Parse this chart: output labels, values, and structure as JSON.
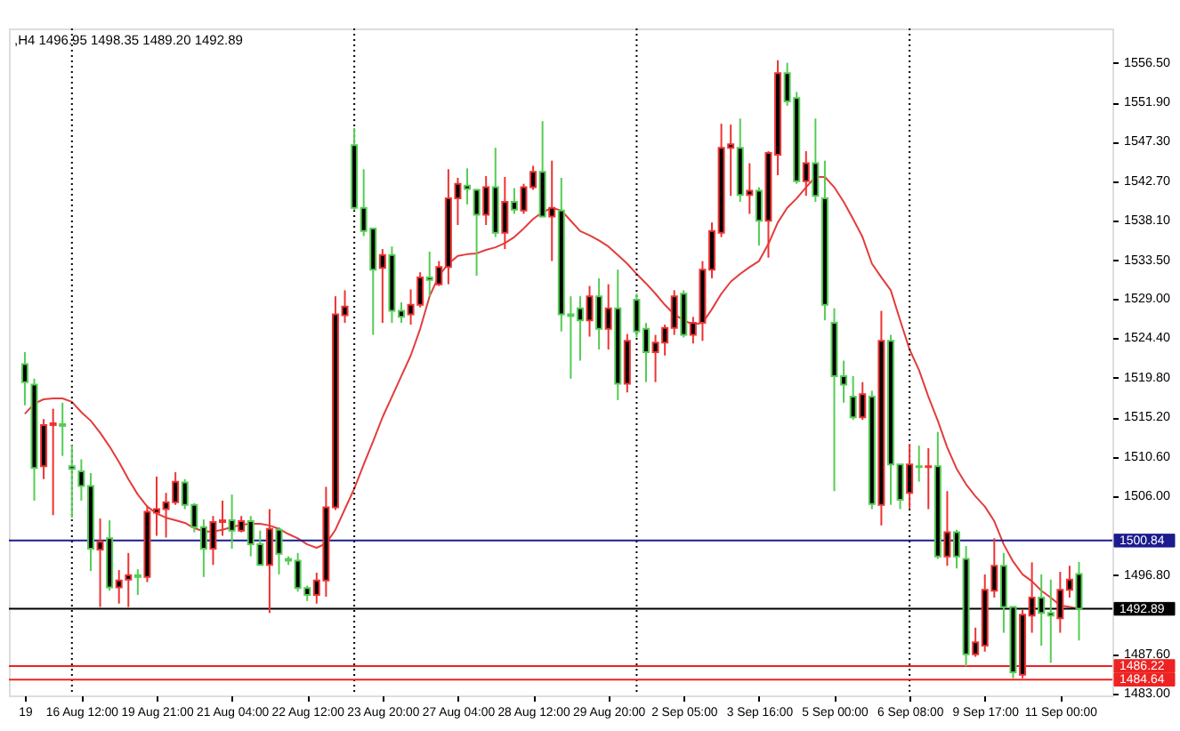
{
  "chart_data": {
    "type": "candlestick",
    "title": ",H4 1496.95 1498.35 1489.20 1492.89",
    "categories": [
      "19",
      null,
      null,
      null,
      null,
      null,
      "16 Aug 12:00",
      null,
      null,
      null,
      null,
      null,
      null,
      null,
      "19 Aug 21:00",
      null,
      null,
      null,
      null,
      null,
      null,
      null,
      "21 Aug 04:00",
      null,
      null,
      null,
      null,
      null,
      null,
      null,
      "22 Aug 12:00",
      null,
      null,
      null,
      null,
      null,
      null,
      null,
      "23 Aug 20:00",
      null,
      null,
      null,
      null,
      null,
      null,
      null,
      "27 Aug 04:00",
      null,
      null,
      null,
      null,
      null,
      null,
      null,
      "28 Aug 12:00",
      null,
      null,
      null,
      null,
      null,
      null,
      null,
      "29 Aug 20:00",
      null,
      null,
      null,
      null,
      null,
      null,
      null,
      "2 Sep 05:00",
      null,
      null,
      null,
      null,
      null,
      null,
      null,
      "3 Sep 16:00",
      null,
      null,
      null,
      null,
      null,
      null,
      null,
      "5 Sep 00:00",
      null,
      null,
      null,
      null,
      null,
      null,
      null,
      "6 Sep 08:00",
      null,
      null,
      null,
      null,
      null,
      null,
      null,
      "9 Sep 17:00",
      null,
      null,
      null,
      null,
      null,
      null,
      null,
      "11 Sep 00:00",
      null,
      null
    ],
    "ohlc": [
      [
        1521.4,
        1522.8,
        1516.6,
        1519.3
      ],
      [
        1519.0,
        1519.7,
        1505.5,
        1509.3
      ],
      [
        1509.5,
        1515.0,
        1508.0,
        1514.3
      ],
      [
        1514.3,
        1516.2,
        1503.8,
        1514.5
      ],
      [
        1514.4,
        1516.9,
        1510.7,
        1514.2
      ],
      [
        1509.5,
        1512.0,
        1503.5,
        1509.2
      ],
      [
        1508.9,
        1510.3,
        1505.5,
        1507.2
      ],
      [
        1507.2,
        1508.7,
        1497.3,
        1499.9
      ],
      [
        1499.8,
        1503.4,
        1493.1,
        1500.7
      ],
      [
        1501.1,
        1503.2,
        1495.0,
        1495.4
      ],
      [
        1495.4,
        1497.4,
        1493.5,
        1496.2
      ],
      [
        1496.3,
        1499.4,
        1493.1,
        1496.8
      ],
      [
        1496.8,
        1497.5,
        1494.5,
        1496.6
      ],
      [
        1496.6,
        1504.9,
        1496.0,
        1504.2
      ],
      [
        1504.1,
        1508.3,
        1501.4,
        1504.5
      ],
      [
        1504.5,
        1506.4,
        1501.2,
        1505.3
      ],
      [
        1505.3,
        1508.8,
        1505.0,
        1507.7
      ],
      [
        1507.6,
        1508.0,
        1504.5,
        1505.0
      ],
      [
        1505.0,
        1505.2,
        1501.8,
        1502.4
      ],
      [
        1502.4,
        1503.3,
        1496.6,
        1499.9
      ],
      [
        1499.9,
        1503.7,
        1498.0,
        1503.0
      ],
      [
        1503.0,
        1505.5,
        1501.4,
        1503.2
      ],
      [
        1503.2,
        1506.2,
        1499.9,
        1502.0
      ],
      [
        1502.0,
        1503.7,
        1501.8,
        1503.1
      ],
      [
        1503.1,
        1503.7,
        1499.0,
        1500.4
      ],
      [
        1500.4,
        1502.0,
        1497.9,
        1498.0
      ],
      [
        1498.0,
        1504.5,
        1492.4,
        1502.2
      ],
      [
        1502.1,
        1502.4,
        1496.9,
        1499.3
      ],
      [
        1498.7,
        1499.0,
        1498.0,
        1498.5
      ],
      [
        1498.5,
        1499.4,
        1494.9,
        1495.3
      ],
      [
        1495.3,
        1495.6,
        1493.8,
        1494.5
      ],
      [
        1494.5,
        1497.1,
        1493.5,
        1496.2
      ],
      [
        1496.2,
        1507.1,
        1494.3,
        1504.7
      ],
      [
        1504.7,
        1529.3,
        1504.4,
        1527.2
      ],
      [
        1527.1,
        1530.0,
        1526.2,
        1528.1
      ],
      [
        1546.9,
        1548.9,
        1539.3,
        1539.6
      ],
      [
        1539.6,
        1544.1,
        1536.3,
        1536.9
      ],
      [
        1537.2,
        1537.3,
        1524.8,
        1532.4
      ],
      [
        1532.6,
        1534.8,
        1526.2,
        1534.1
      ],
      [
        1534.1,
        1535.1,
        1526.2,
        1527.6
      ],
      [
        1527.6,
        1528.6,
        1526.2,
        1526.9
      ],
      [
        1527.2,
        1530.1,
        1526.0,
        1528.3
      ],
      [
        1528.3,
        1532.1,
        1528.0,
        1531.5
      ],
      [
        1531.5,
        1534.5,
        1529.3,
        1531.2
      ],
      [
        1530.7,
        1533.4,
        1530.5,
        1532.7
      ],
      [
        1532.7,
        1544.1,
        1530.7,
        1540.7
      ],
      [
        1540.7,
        1543.1,
        1537.6,
        1542.4
      ],
      [
        1542.2,
        1544.2,
        1540.0,
        1541.8
      ],
      [
        1541.7,
        1541.8,
        1531.7,
        1538.8
      ],
      [
        1538.8,
        1543.3,
        1537.6,
        1542.0
      ],
      [
        1542.0,
        1546.6,
        1536.2,
        1536.7
      ],
      [
        1536.7,
        1543.2,
        1534.8,
        1540.3
      ],
      [
        1540.3,
        1541.9,
        1538.9,
        1539.4
      ],
      [
        1539.3,
        1542.4,
        1538.9,
        1542.0
      ],
      [
        1542.0,
        1544.5,
        1541.7,
        1543.8
      ],
      [
        1543.8,
        1549.7,
        1538.5,
        1538.6
      ],
      [
        1538.6,
        1545.1,
        1533.4,
        1539.6
      ],
      [
        1539.3,
        1543.1,
        1525.2,
        1527.2
      ],
      [
        1527.2,
        1529.3,
        1519.7,
        1527.0
      ],
      [
        1527.9,
        1529.3,
        1521.8,
        1526.5
      ],
      [
        1526.5,
        1530.5,
        1524.6,
        1529.3
      ],
      [
        1529.3,
        1531.4,
        1523.1,
        1525.5
      ],
      [
        1525.5,
        1530.7,
        1523.1,
        1527.9
      ],
      [
        1527.9,
        1532.4,
        1517.2,
        1519.1
      ],
      [
        1519.1,
        1524.9,
        1518.1,
        1524.1
      ],
      [
        1528.9,
        1529.6,
        1524.5,
        1525.2
      ],
      [
        1525.5,
        1526.2,
        1519.3,
        1522.8
      ],
      [
        1522.8,
        1524.8,
        1519.3,
        1523.9
      ],
      [
        1523.9,
        1526.0,
        1522.4,
        1525.6
      ],
      [
        1525.6,
        1530.0,
        1524.8,
        1529.3
      ],
      [
        1529.6,
        1530.0,
        1524.5,
        1524.8
      ],
      [
        1524.8,
        1526.9,
        1523.8,
        1526.2
      ],
      [
        1526.2,
        1533.4,
        1524.1,
        1532.4
      ],
      [
        1532.4,
        1537.9,
        1531.4,
        1536.9
      ],
      [
        1536.7,
        1549.4,
        1536.2,
        1546.6
      ],
      [
        1546.6,
        1549.3,
        1541.0,
        1547.0
      ],
      [
        1546.6,
        1550.0,
        1540.3,
        1541.1
      ],
      [
        1541.1,
        1544.8,
        1538.9,
        1541.6
      ],
      [
        1541.6,
        1542.0,
        1535.2,
        1538.1
      ],
      [
        1538.1,
        1546.2,
        1533.8,
        1546.0
      ],
      [
        1545.8,
        1556.8,
        1543.4,
        1555.3
      ],
      [
        1555.3,
        1556.5,
        1551.5,
        1552.0
      ],
      [
        1552.4,
        1553.1,
        1542.4,
        1542.7
      ],
      [
        1542.7,
        1546.2,
        1541.0,
        1544.8
      ],
      [
        1544.8,
        1550.0,
        1540.3,
        1541.0
      ],
      [
        1540.7,
        1545.1,
        1526.5,
        1528.3
      ],
      [
        1526.2,
        1527.9,
        1506.6,
        1520.0
      ],
      [
        1520.0,
        1521.8,
        1516.9,
        1519.0
      ],
      [
        1517.6,
        1520.0,
        1514.9,
        1515.2
      ],
      [
        1515.2,
        1519.3,
        1514.9,
        1517.9
      ],
      [
        1517.6,
        1518.3,
        1504.5,
        1505.1
      ],
      [
        1505.0,
        1527.6,
        1502.6,
        1524.1
      ],
      [
        1524.1,
        1524.8,
        1505.0,
        1509.7
      ],
      [
        1509.7,
        1509.7,
        1504.5,
        1505.6
      ],
      [
        1506.4,
        1512.1,
        1504.5,
        1509.7
      ],
      [
        1509.5,
        1511.9,
        1507.7,
        1509.4
      ],
      [
        1509.4,
        1511.6,
        1504.5,
        1509.5
      ],
      [
        1509.5,
        1513.5,
        1498.7,
        1499.0
      ],
      [
        1499.0,
        1506.6,
        1497.9,
        1501.8
      ],
      [
        1501.8,
        1502.1,
        1497.6,
        1499.0
      ],
      [
        1498.7,
        1500.2,
        1486.2,
        1487.6
      ],
      [
        1487.6,
        1490.7,
        1487.3,
        1489.0
      ],
      [
        1488.6,
        1496.9,
        1487.9,
        1495.1
      ],
      [
        1495.0,
        1501.1,
        1494.2,
        1497.9
      ],
      [
        1497.9,
        1499.4,
        1490.1,
        1493.1
      ],
      [
        1493.1,
        1493.1,
        1484.8,
        1485.5
      ],
      [
        1485.2,
        1492.8,
        1484.8,
        1492.2
      ],
      [
        1492.1,
        1498.3,
        1490.1,
        1494.2
      ],
      [
        1494.2,
        1496.9,
        1488.6,
        1492.4
      ],
      [
        1492.4,
        1496.3,
        1486.6,
        1492.1
      ],
      [
        1491.8,
        1497.2,
        1490.1,
        1495.1
      ],
      [
        1495.1,
        1497.9,
        1494.2,
        1496.3
      ],
      [
        1496.95,
        1498.35,
        1489.2,
        1492.89
      ]
    ],
    "colors": [
      "#55cc55",
      "#55cc55",
      "#ee3333",
      "#ee3333",
      "#55cc55",
      "#55cc55",
      "#55cc55",
      "#55cc55",
      "#ee3333",
      "#55cc55",
      "#ee3333",
      "#ee3333",
      "#55cc55",
      "#ee3333",
      "#ee3333",
      "#ee3333",
      "#ee3333",
      "#55cc55",
      "#55cc55",
      "#55cc55",
      "#ee3333",
      "#ee3333",
      "#55cc55",
      "#ee3333",
      "#55cc55",
      "#55cc55",
      "#ee3333",
      "#55cc55",
      "#55cc55",
      "#55cc55",
      "#55cc55",
      "#ee3333",
      "#ee3333",
      "#ee3333",
      "#ee3333",
      "#55cc55",
      "#55cc55",
      "#55cc55",
      "#ee3333",
      "#55cc55",
      "#55cc55",
      "#ee3333",
      "#ee3333",
      "#55cc55",
      "#ee3333",
      "#ee3333",
      "#ee3333",
      "#55cc55",
      "#55cc55",
      "#ee3333",
      "#55cc55",
      "#ee3333",
      "#55cc55",
      "#ee3333",
      "#ee3333",
      "#55cc55",
      "#ee3333",
      "#55cc55",
      "#55cc55",
      "#55cc55",
      "#ee3333",
      "#55cc55",
      "#ee3333",
      "#55cc55",
      "#ee3333",
      "#55cc55",
      "#55cc55",
      "#ee3333",
      "#ee3333",
      "#ee3333",
      "#55cc55",
      "#ee3333",
      "#ee3333",
      "#ee3333",
      "#ee3333",
      "#ee3333",
      "#55cc55",
      "#ee3333",
      "#55cc55",
      "#ee3333",
      "#ee3333",
      "#55cc55",
      "#55cc55",
      "#ee3333",
      "#55cc55",
      "#55cc55",
      "#55cc55",
      "#55cc55",
      "#55cc55",
      "#ee3333",
      "#55cc55",
      "#ee3333",
      "#55cc55",
      "#55cc55",
      "#ee3333",
      "#55cc55",
      "#ee3333",
      "#55cc55",
      "#ee3333",
      "#55cc55",
      "#55cc55",
      "#ee3333",
      "#ee3333",
      "#ee3333",
      "#55cc55",
      "#55cc55",
      "#ee3333",
      "#ee3333",
      "#55cc55",
      "#55cc55",
      "#ee3333",
      "#ee3333",
      "#55cc55"
    ],
    "series": [
      {
        "type": "line",
        "color": "#e43c3c",
        "values": [
          1515.6,
          1516.8,
          1517.3,
          1517.4,
          1517.4,
          1517.0,
          1515.8,
          1514.8,
          1513.4,
          1511.8,
          1510.0,
          1508.0,
          1506.2,
          1504.8,
          1504.0,
          1503.5,
          1503.2,
          1502.9,
          1502.3,
          1501.9,
          1501.9,
          1502.1,
          1502.4,
          1502.7,
          1502.8,
          1502.8,
          1502.6,
          1502.2,
          1501.6,
          1501.1,
          1500.4,
          1500.0,
          1500.5,
          1502.1,
          1504.5,
          1506.9,
          1509.7,
          1512.4,
          1515.2,
          1517.6,
          1520.0,
          1522.4,
          1525.5,
          1529.3,
          1531.7,
          1533.1,
          1534.0,
          1534.2,
          1534.3,
          1534.7,
          1535.0,
          1535.5,
          1536.2,
          1537.2,
          1538.3,
          1539.1,
          1539.6,
          1539.3,
          1538.1,
          1536.9,
          1536.4,
          1535.8,
          1535.1,
          1534.1,
          1533.1,
          1531.9,
          1530.8,
          1529.6,
          1528.3,
          1527.2,
          1526.5,
          1526.0,
          1526.2,
          1527.8,
          1529.6,
          1531.0,
          1531.9,
          1532.7,
          1533.4,
          1535.4,
          1537.9,
          1539.6,
          1540.7,
          1542.0,
          1543.2,
          1543.2,
          1542.0,
          1540.3,
          1538.3,
          1536.2,
          1533.1,
          1531.5,
          1530.0,
          1526.5,
          1523.1,
          1520.7,
          1517.6,
          1514.8,
          1511.7,
          1509.2,
          1507.4,
          1506.0,
          1504.8,
          1503.1,
          1500.4,
          1498.4,
          1496.9,
          1496.1,
          1495.0,
          1494.2,
          1493.3,
          1493.1,
          1492.9
        ]
      }
    ],
    "ylim": [
      1482.8,
      1560.5
    ],
    "yticks": [
      {
        "value": 1556.5,
        "label": "1556.50"
      },
      {
        "value": 1551.9,
        "label": "1551.90"
      },
      {
        "value": 1547.3,
        "label": "1547.30"
      },
      {
        "value": 1542.7,
        "label": "1542.70"
      },
      {
        "value": 1538.1,
        "label": "1538.10"
      },
      {
        "value": 1533.5,
        "label": "1533.50"
      },
      {
        "value": 1529.0,
        "label": "1529.00"
      },
      {
        "value": 1524.4,
        "label": "1524.40"
      },
      {
        "value": 1519.8,
        "label": "1519.80"
      },
      {
        "value": 1515.2,
        "label": "1515.20"
      },
      {
        "value": 1510.6,
        "label": "1510.60"
      },
      {
        "value": 1506.0,
        "label": "1506.00"
      },
      {
        "value": 1496.8,
        "label": "1496.80"
      },
      {
        "value": 1487.6,
        "label": "1487.60"
      },
      {
        "value": 1483.0,
        "label": "1483.00"
      }
    ],
    "ref_lines": [
      {
        "axis": "y",
        "value": 1500.84,
        "label": "1500.84",
        "color": "#1c1c8f",
        "line_style": "solid"
      },
      {
        "axis": "y",
        "value": 1492.89,
        "label": "1492.89",
        "color": "#000000",
        "line_style": "solid"
      },
      {
        "axis": "y",
        "value": 1486.22,
        "label": "1486.22",
        "color": "#ee2222",
        "line_style": "solid"
      },
      {
        "axis": "y",
        "value": 1484.64,
        "label": "1484.64",
        "color": "#ee2222",
        "line_style": "solid"
      }
    ],
    "grid": false
  }
}
